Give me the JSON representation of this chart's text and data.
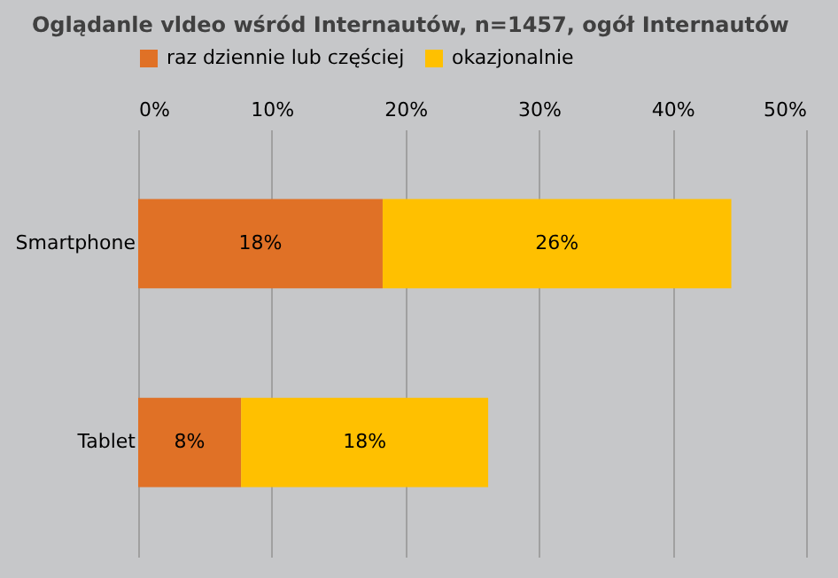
{
  "chart_data": {
    "type": "bar",
    "orientation": "horizontal",
    "stacked": true,
    "title": "Oglądanle vldeo wśród Internautów, n=1457, ogół Internautów",
    "categories": [
      "Smartphone",
      "Tablet"
    ],
    "series": [
      {
        "name": "raz dziennie lub częściej",
        "color": "#e07126",
        "values": [
          18.3,
          7.7
        ],
        "value_labels": [
          "18%",
          "8%"
        ]
      },
      {
        "name": "okazjonalnie",
        "color": "#ffc000",
        "values": [
          26.1,
          18.5
        ],
        "value_labels": [
          "26%",
          "18%"
        ]
      }
    ],
    "xlim": [
      0,
      50
    ],
    "xticks": [
      {
        "value": 0,
        "label": "0%"
      },
      {
        "value": 10,
        "label": "10%"
      },
      {
        "value": 20,
        "label": "20%"
      },
      {
        "value": 30,
        "label": "30%"
      },
      {
        "value": 40,
        "label": "40%"
      },
      {
        "value": 50,
        "label": "50%"
      }
    ],
    "grid": "x",
    "legend": "top"
  }
}
